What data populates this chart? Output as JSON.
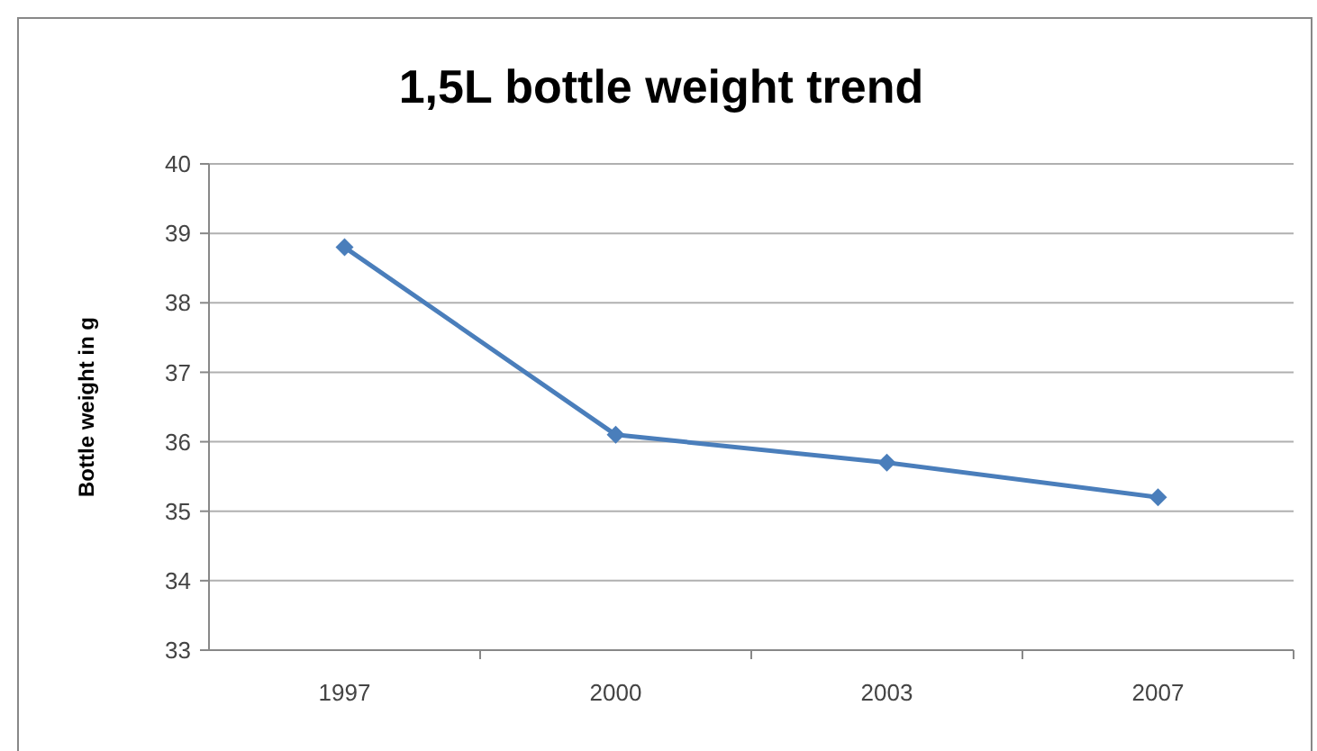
{
  "chart_data": {
    "type": "line",
    "title": "1,5L bottle weight trend",
    "ylabel": "Bottle weight in g",
    "categories": [
      "1997",
      "2000",
      "2003",
      "2007"
    ],
    "series": [
      {
        "color": "#4a7ebb",
        "values": [
          38.8,
          36.1,
          35.7,
          35.2
        ]
      }
    ],
    "ylim": [
      33,
      40
    ],
    "yticks": [
      33,
      34,
      35,
      36,
      37,
      38,
      39,
      40
    ],
    "grid": "y",
    "marker": "diamond",
    "line_style": "solid"
  }
}
